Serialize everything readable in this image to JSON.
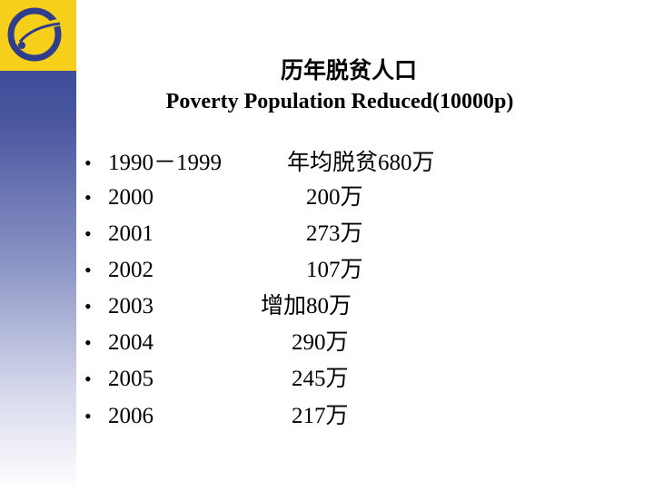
{
  "slide": {
    "title": "历年脱贫人口",
    "subtitle": "Poverty Population Reduced(10000p)",
    "bullet_symbol": "•",
    "rows": [
      {
        "year": "1990－1999",
        "value": "年均脱贫680万"
      },
      {
        "year": "2000",
        "value": "200万"
      },
      {
        "year": "2001",
        "value": "273万"
      },
      {
        "year": "2002",
        "value": "107万"
      },
      {
        "year": "2003",
        "value": "增加80万"
      },
      {
        "year": "2004",
        "value": "290万"
      },
      {
        "year": "2005",
        "value": "245万"
      },
      {
        "year": "2006",
        "value": "217万"
      }
    ]
  },
  "colors": {
    "sidebar_blue": "#2f3d8c",
    "logo_yellow": "#f6cf1a"
  }
}
